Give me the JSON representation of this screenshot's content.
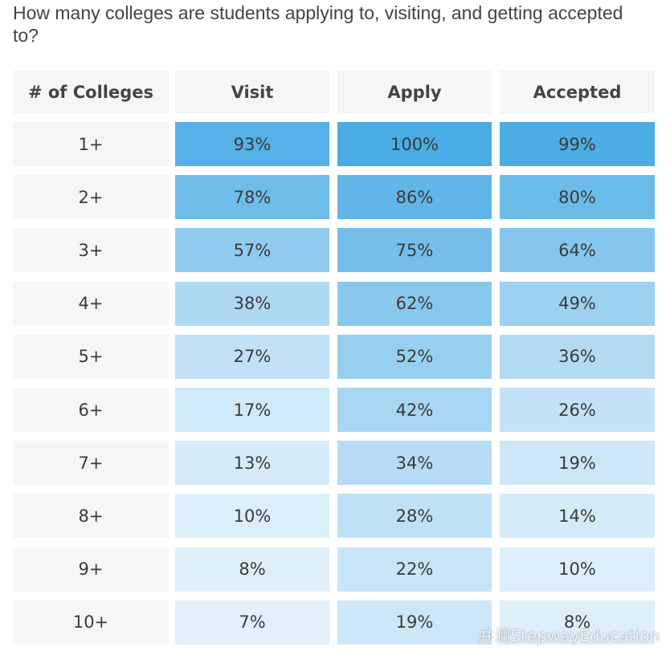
{
  "title": "How many colleges are students applying to, visiting, and getting accepted to?",
  "table": {
    "header": [
      "# of Colleges",
      "Visit",
      "Apply",
      "Accepted"
    ],
    "rows": [
      [
        "1+",
        "93%",
        "100%",
        "99%"
      ],
      [
        "2+",
        "78%",
        "86%",
        "80%"
      ],
      [
        "3+",
        "57%",
        "75%",
        "64%"
      ],
      [
        "4+",
        "38%",
        "62%",
        "49%"
      ],
      [
        "5+",
        "27%",
        "52%",
        "36%"
      ],
      [
        "6+",
        "17%",
        "42%",
        "26%"
      ],
      [
        "7+",
        "13%",
        "34%",
        "19%"
      ],
      [
        "8+",
        "10%",
        "28%",
        "14%"
      ],
      [
        "9+",
        "8%",
        "22%",
        "10%"
      ],
      [
        "10+",
        "7%",
        "19%",
        "8%"
      ]
    ]
  },
  "watermark": "井澜StepwayEducation"
}
